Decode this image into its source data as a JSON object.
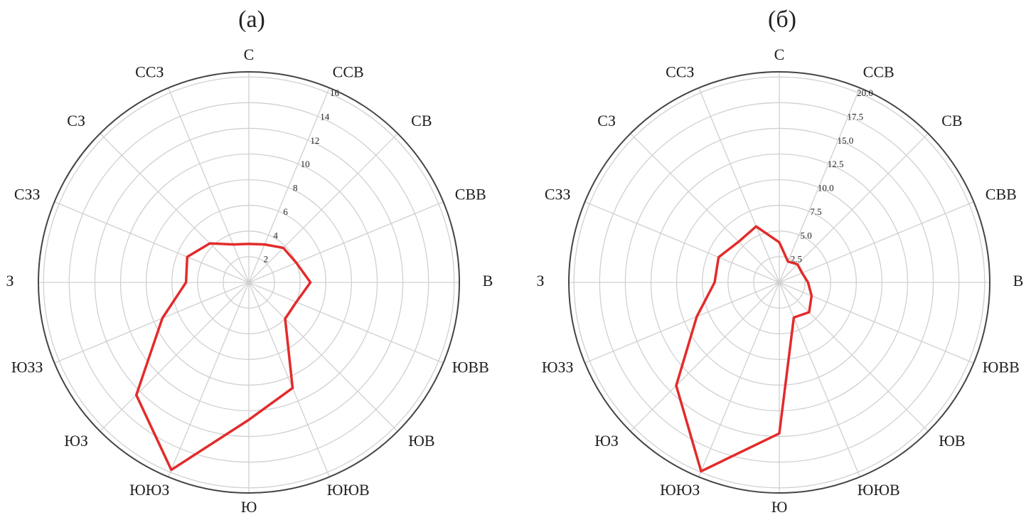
{
  "chart_data": [
    {
      "type": "radar",
      "title": "(а)",
      "categories": [
        "С",
        "ССВ",
        "СВ",
        "СВВ",
        "В",
        "ЮВВ",
        "ЮВ",
        "ЮЮВ",
        "Ю",
        "ЮЮЗ",
        "ЮЗ",
        "ЮЗЗ",
        "З",
        "СЗЗ",
        "СЗ",
        "ССЗ"
      ],
      "values": [
        3.0,
        3.2,
        3.8,
        4.0,
        4.8,
        4.0,
        4.0,
        8.9,
        10.7,
        15.8,
        12.4,
        7.3,
        4.9,
        5.2,
        4.3,
        3.2
      ],
      "color": "#e32b2b",
      "rlim": [
        0,
        16.4
      ],
      "rticks": [
        2,
        4,
        6,
        8,
        10,
        12,
        14,
        16
      ],
      "grid": true
    },
    {
      "type": "radar",
      "title": "(б)",
      "categories": [
        "С",
        "ССВ",
        "СВ",
        "СВВ",
        "В",
        "ЮВВ",
        "ЮВ",
        "ЮЮВ",
        "Ю",
        "ЮЮЗ",
        "ЮЗ",
        "ЮЗЗ",
        "З",
        "СЗЗ",
        "СЗ",
        "ССЗ"
      ],
      "values": [
        3.9,
        2.2,
        2.5,
        2.4,
        2.8,
        3.4,
        4.1,
        3.7,
        14.7,
        19.9,
        14.2,
        8.7,
        6.3,
        6.4,
        5.6,
        5.9
      ],
      "color": "#e32b2b",
      "rlim": [
        0,
        20.5
      ],
      "rticks": [
        2.5,
        {
          "value": 5,
          "label": "5.0"
        },
        7.5,
        {
          "value": 10,
          "label": "10.0"
        },
        12.5,
        {
          "value": 15,
          "label": "15.0"
        },
        17.5,
        {
          "value": 20,
          "label": "20.0"
        }
      ],
      "grid": true
    }
  ]
}
